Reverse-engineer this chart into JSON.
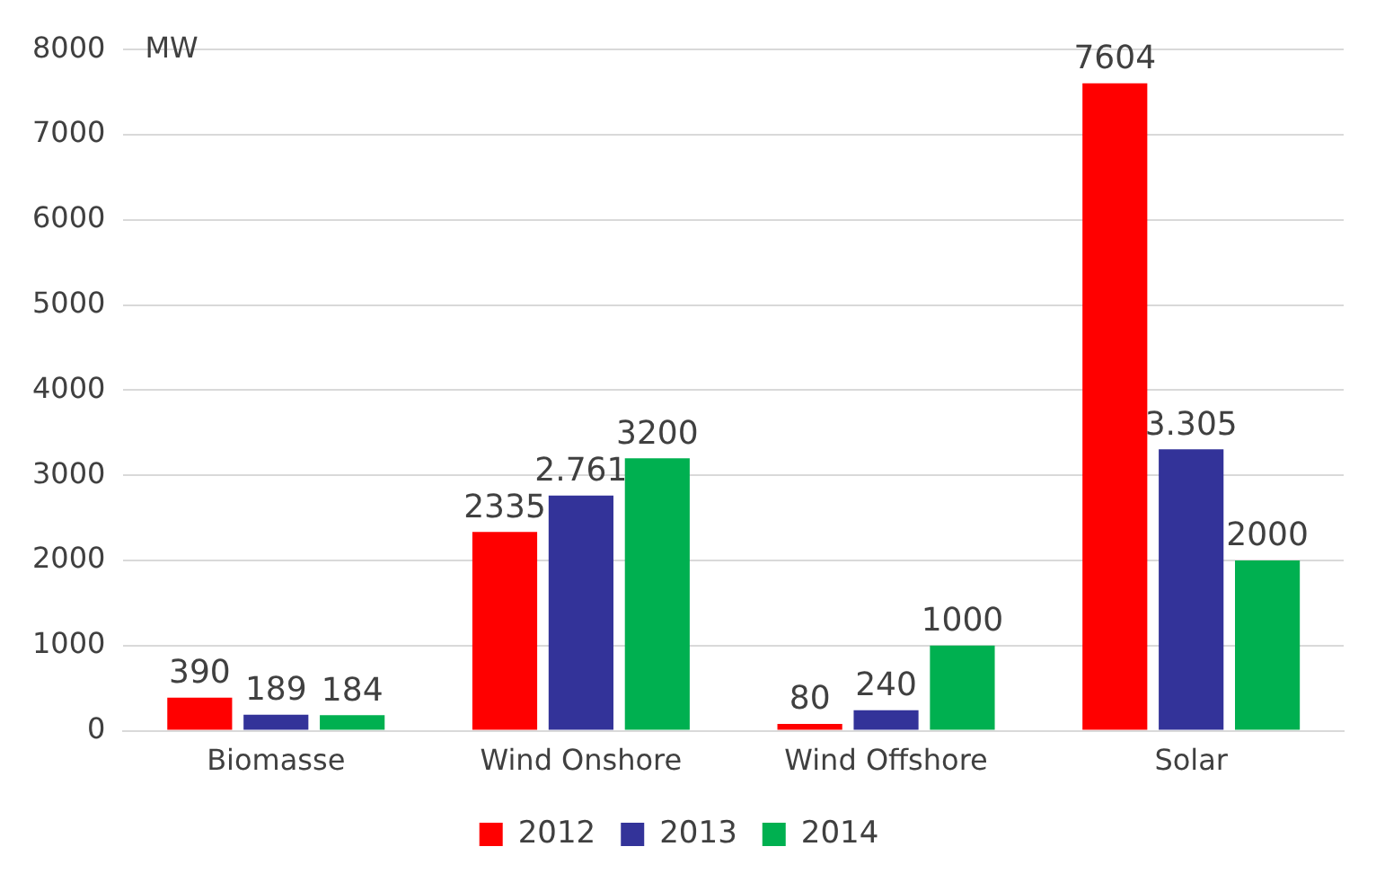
{
  "chart_data": {
    "type": "bar",
    "ylabel": "MW",
    "categories": [
      "Biomasse",
      "Wind Onshore",
      "Wind Offshore",
      "Solar"
    ],
    "series": [
      {
        "name": "2012",
        "color": "#ff0000",
        "values": [
          390,
          2335,
          80,
          7604
        ],
        "value_labels": [
          "390",
          "2335",
          "80",
          "7604"
        ]
      },
      {
        "name": "2013",
        "color": "#333399",
        "values": [
          189,
          2761,
          240,
          3305
        ],
        "value_labels": [
          "189",
          "2.761",
          "240",
          "3.305"
        ]
      },
      {
        "name": "2014",
        "color": "#00b050",
        "values": [
          184,
          3200,
          1000,
          2000
        ],
        "value_labels": [
          "184",
          "3200",
          "1000",
          "2000"
        ]
      }
    ],
    "ylim": [
      0,
      8000
    ],
    "yticks": [
      0,
      1000,
      2000,
      3000,
      4000,
      5000,
      6000,
      7000,
      8000
    ],
    "grid": "y",
    "legend": "bottom"
  }
}
